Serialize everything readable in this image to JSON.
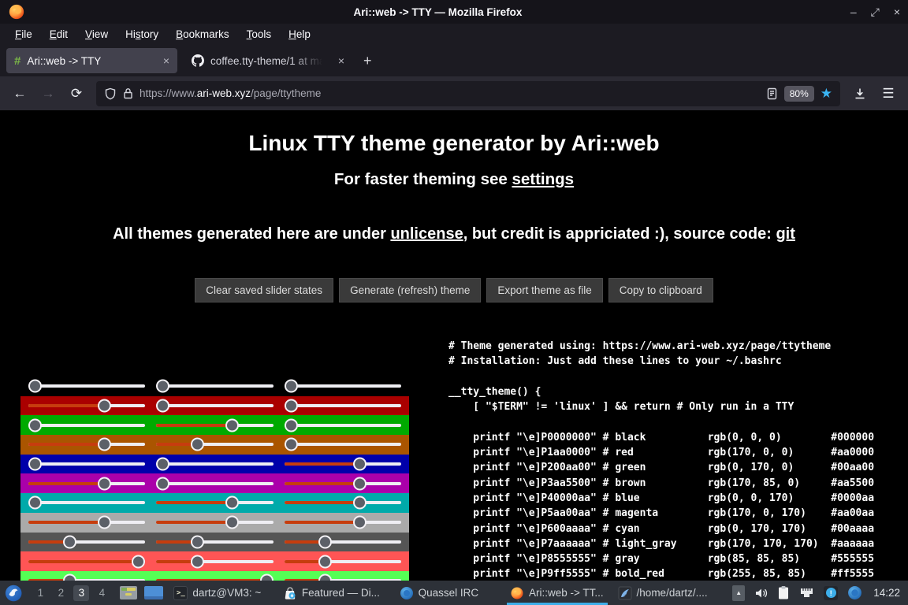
{
  "window": {
    "title": "Ari::web -> TTY — Mozilla Firefox"
  },
  "icons": {
    "minimize": "–",
    "restore": "⤢",
    "close": "×",
    "back": "←",
    "forward": "→",
    "reload": "⟳",
    "hamburger": "☰",
    "star": "★",
    "new_tab": "+",
    "hash": "#",
    "terminal_prompt": ">_",
    "tray_arrow": "▲",
    "notification_mark": "!"
  },
  "menubar": {
    "items": [
      {
        "label": "File",
        "underline": 0
      },
      {
        "label": "Edit",
        "underline": 0
      },
      {
        "label": "View",
        "underline": 0
      },
      {
        "label": "History",
        "underline": 2
      },
      {
        "label": "Bookmarks",
        "underline": 0
      },
      {
        "label": "Tools",
        "underline": 0
      },
      {
        "label": "Help",
        "underline": 0
      }
    ]
  },
  "tabs": {
    "tab1": {
      "label": "Ari::web -> TTY"
    },
    "tab2": {
      "label": "coffee.tty-theme/1 at ma"
    }
  },
  "navbar": {
    "url": {
      "scheme": "https://www.",
      "domain": "ari-web.xyz",
      "path": "/page/ttytheme"
    },
    "zoom_badge": "80%"
  },
  "page": {
    "h1": "Linux TTY theme generator by Ari::web",
    "h2_prefix": "For faster theming see ",
    "h2_link": "settings",
    "notice_part1": "All themes generated here are under ",
    "notice_link1": "unlicense",
    "notice_part2": ", but credit is appriciated :), source code: ",
    "notice_link2": "git",
    "buttons": [
      "Clear saved slider states",
      "Generate (refresh) theme",
      "Export theme as file",
      "Copy to clipboard"
    ],
    "sliders": {
      "rows": [
        {
          "name": "black",
          "hex": "#000000",
          "rgb": [
            0,
            0,
            0
          ]
        },
        {
          "name": "red",
          "hex": "#aa0000",
          "rgb": [
            170,
            0,
            0
          ]
        },
        {
          "name": "green",
          "hex": "#00aa00",
          "rgb": [
            0,
            170,
            0
          ]
        },
        {
          "name": "brown",
          "hex": "#aa5500",
          "rgb": [
            170,
            85,
            0
          ]
        },
        {
          "name": "blue",
          "hex": "#0000aa",
          "rgb": [
            0,
            0,
            170
          ]
        },
        {
          "name": "magenta",
          "hex": "#aa00aa",
          "rgb": [
            170,
            0,
            170
          ]
        },
        {
          "name": "cyan",
          "hex": "#00aaaa",
          "rgb": [
            0,
            170,
            170
          ]
        },
        {
          "name": "light_gray",
          "hex": "#aaaaaa",
          "rgb": [
            170,
            170,
            170
          ]
        },
        {
          "name": "gray",
          "hex": "#555555",
          "rgb": [
            85,
            85,
            85
          ]
        },
        {
          "name": "bold_red",
          "hex": "#ff5555",
          "rgb": [
            255,
            85,
            85
          ]
        },
        {
          "name": "bold_green",
          "hex": "#55ff55",
          "rgb": [
            85,
            255,
            85
          ]
        }
      ]
    },
    "code": {
      "header_lines": [
        "# Theme generated using: https://www.ari-web.xyz/page/ttytheme",
        "# Installation: Just add these lines to your ~/.bashrc"
      ],
      "func_open": "__tty_theme() {",
      "guard": "    [ \"$TERM\" != 'linux' ] && return # Only run in a TTY",
      "colors": [
        {
          "seq": "P0000000",
          "name": "black",
          "rgb": "rgb(0, 0, 0)",
          "hex": "#000000"
        },
        {
          "seq": "P1aa0000",
          "name": "red",
          "rgb": "rgb(170, 0, 0)",
          "hex": "#aa0000"
        },
        {
          "seq": "P200aa00",
          "name": "green",
          "rgb": "rgb(0, 170, 0)",
          "hex": "#00aa00"
        },
        {
          "seq": "P3aa5500",
          "name": "brown",
          "rgb": "rgb(170, 85, 0)",
          "hex": "#aa5500"
        },
        {
          "seq": "P40000aa",
          "name": "blue",
          "rgb": "rgb(0, 0, 170)",
          "hex": "#0000aa"
        },
        {
          "seq": "P5aa00aa",
          "name": "magenta",
          "rgb": "rgb(170, 0, 170)",
          "hex": "#aa00aa"
        },
        {
          "seq": "P600aaaa",
          "name": "cyan",
          "rgb": "rgb(0, 170, 170)",
          "hex": "#00aaaa"
        },
        {
          "seq": "P7aaaaaa",
          "name": "light_gray",
          "rgb": "rgb(170, 170, 170)",
          "hex": "#aaaaaa"
        },
        {
          "seq": "P8555555",
          "name": "gray",
          "rgb": "rgb(85, 85, 85)",
          "hex": "#555555"
        },
        {
          "seq": "P9ff5555",
          "name": "bold_red",
          "rgb": "rgb(255, 85, 85)",
          "hex": "#ff5555"
        }
      ]
    }
  },
  "taskbar": {
    "workspaces": [
      "1",
      "2",
      "3",
      "4"
    ],
    "active_workspace": "3",
    "tasks": [
      {
        "label": "dartz@VM3: ~"
      },
      {
        "label": "Featured — Di..."
      },
      {
        "label": "Quassel IRC"
      },
      {
        "label": "Ari::web -> TT..."
      },
      {
        "label": "/home/dartz/...."
      }
    ],
    "clock": "14:22"
  }
}
